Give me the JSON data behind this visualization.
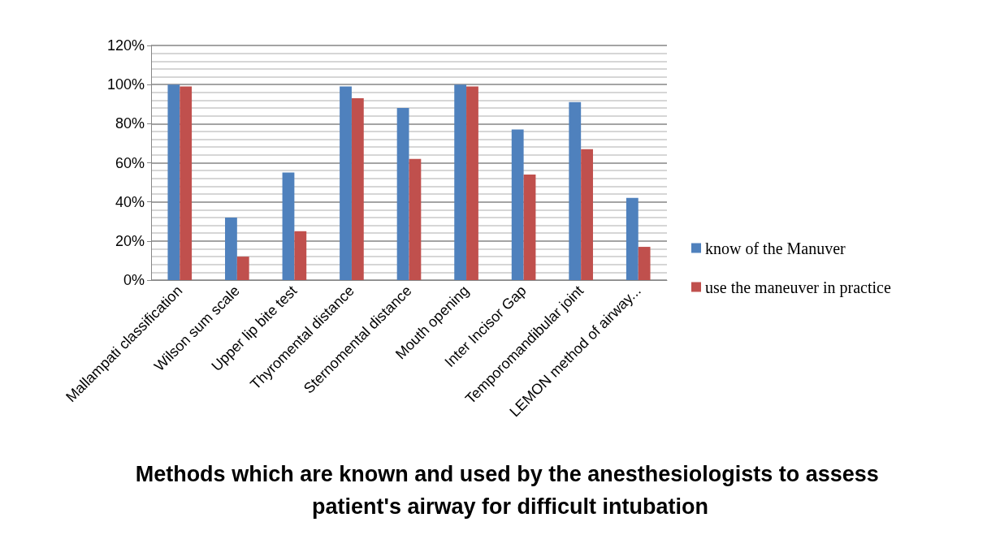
{
  "chart_data": {
    "type": "bar",
    "title": "Methods which are known and used by the anesthesiologists to assess patient's airway for difficult intubation",
    "categories": [
      "Mallampati classification",
      "Wilson sum scale",
      "Upper lip bite test",
      "Thyromental distance",
      "Sternomental distance",
      "Mouth opening",
      "Inter Incisor Gap",
      "Temporomandibular joint",
      "LEMON method of airway..."
    ],
    "series": [
      {
        "name": "know of the Manuver",
        "color": "#4f81bd",
        "values": [
          100,
          32,
          55,
          99,
          88,
          100,
          77,
          91,
          42
        ]
      },
      {
        "name": "use the maneuver in practice",
        "color": "#c0504d",
        "values": [
          99,
          12,
          25,
          93,
          62,
          99,
          54,
          67,
          17
        ]
      }
    ],
    "ylim": [
      0,
      120
    ],
    "yticks": [
      {
        "value": 0,
        "label": "0%"
      },
      {
        "value": 20,
        "label": "20%"
      },
      {
        "value": 40,
        "label": "40%"
      },
      {
        "value": 60,
        "label": "60%"
      },
      {
        "value": 80,
        "label": "80%"
      },
      {
        "value": 100,
        "label": "100%"
      },
      {
        "value": 120,
        "label": "120%"
      }
    ],
    "grid": "y",
    "legend": "right"
  }
}
